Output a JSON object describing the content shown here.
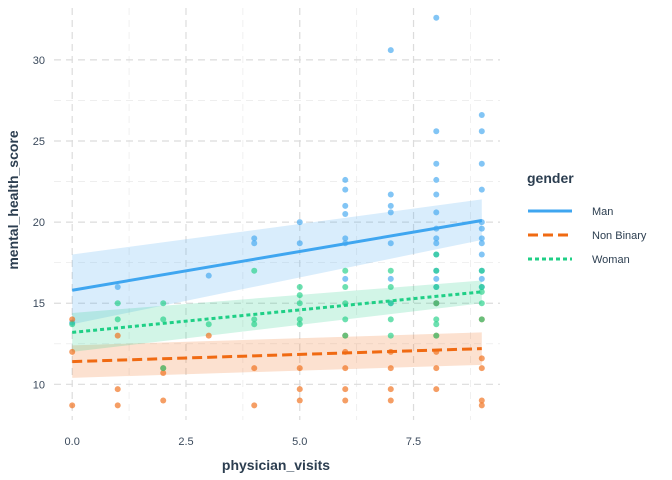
{
  "chart_data": {
    "type": "scatter",
    "xlabel": "physician_visits",
    "ylabel": "mental_health_score",
    "xlim": [
      -0.4,
      9.4
    ],
    "ylim": [
      7.8,
      33.2
    ],
    "x_ticks": [
      0,
      2.5,
      5,
      7.5
    ],
    "x_tick_labels": [
      "0.0",
      "2.5",
      "5.0",
      "7.5"
    ],
    "y_ticks": [
      10,
      15,
      20,
      25,
      30
    ],
    "y_tick_labels": [
      "10",
      "15",
      "20",
      "25",
      "30"
    ],
    "grid": true,
    "legend": {
      "title": "gender",
      "position": "right"
    },
    "series": [
      {
        "name": "Man",
        "color": "#3fa6f0",
        "line_style": "solid",
        "trend": {
          "x": [
            0,
            9
          ],
          "y": [
            15.8,
            20.1
          ]
        },
        "band": {
          "x": [
            0,
            9
          ],
          "lower": [
            13.7,
            18.9
          ],
          "upper": [
            18.0,
            21.4
          ]
        },
        "points": [
          [
            0,
            13.8
          ],
          [
            1,
            16.0
          ],
          [
            3,
            16.7
          ],
          [
            4,
            18.7
          ],
          [
            4,
            19.0
          ],
          [
            5,
            18.7
          ],
          [
            5,
            20.0
          ],
          [
            6,
            22.6
          ],
          [
            6,
            22.0
          ],
          [
            6,
            21.0
          ],
          [
            6,
            20.5
          ],
          [
            6,
            19.0
          ],
          [
            6,
            18.7
          ],
          [
            6,
            16.5
          ],
          [
            7,
            30.6
          ],
          [
            7,
            21.7
          ],
          [
            7,
            21.0
          ],
          [
            7,
            20.6
          ],
          [
            7,
            18.7
          ],
          [
            7,
            16.5
          ],
          [
            7,
            15.0
          ],
          [
            8,
            32.6
          ],
          [
            8,
            25.6
          ],
          [
            8,
            23.6
          ],
          [
            8,
            22.6
          ],
          [
            8,
            21.7
          ],
          [
            8,
            20.6
          ],
          [
            8,
            19.6
          ],
          [
            8,
            19.0
          ],
          [
            8,
            18.7
          ],
          [
            8,
            18.0
          ],
          [
            8,
            17.0
          ],
          [
            8,
            16.5
          ],
          [
            8,
            16.0
          ],
          [
            8,
            15.0
          ],
          [
            9,
            26.6
          ],
          [
            9,
            25.6
          ],
          [
            9,
            23.6
          ],
          [
            9,
            22.0
          ],
          [
            9,
            20.0
          ],
          [
            9,
            19.6
          ],
          [
            9,
            19.0
          ],
          [
            9,
            18.7
          ],
          [
            9,
            18.0
          ],
          [
            9,
            17.0
          ],
          [
            9,
            16.5
          ],
          [
            9,
            16.0
          ]
        ]
      },
      {
        "name": "Non Binary",
        "color": "#f06a12",
        "line_style": "dashed",
        "trend": {
          "x": [
            0,
            9
          ],
          "y": [
            11.4,
            12.2
          ]
        },
        "band": {
          "x": [
            0,
            9
          ],
          "lower": [
            10.4,
            11.2
          ],
          "upper": [
            12.4,
            13.2
          ]
        },
        "points": [
          [
            0,
            14.0
          ],
          [
            0,
            12.0
          ],
          [
            0,
            8.7
          ],
          [
            1,
            13.0
          ],
          [
            1,
            9.7
          ],
          [
            1,
            8.7
          ],
          [
            2,
            11.0
          ],
          [
            2,
            10.7
          ],
          [
            2,
            9.0
          ],
          [
            3,
            13.0
          ],
          [
            4,
            11.0
          ],
          [
            4,
            8.7
          ],
          [
            5,
            11.0
          ],
          [
            5,
            9.7
          ],
          [
            5,
            9.0
          ],
          [
            6,
            13.0
          ],
          [
            6,
            12.0
          ],
          [
            6,
            11.0
          ],
          [
            6,
            9.7
          ],
          [
            6,
            9.0
          ],
          [
            7,
            12.0
          ],
          [
            7,
            11.0
          ],
          [
            7,
            9.7
          ],
          [
            7,
            9.0
          ],
          [
            8,
            15.0
          ],
          [
            8,
            13.0
          ],
          [
            8,
            12.0
          ],
          [
            8,
            11.0
          ],
          [
            8,
            9.7
          ],
          [
            9,
            14.0
          ],
          [
            9,
            11.6
          ],
          [
            9,
            11.0
          ],
          [
            9,
            9.0
          ],
          [
            9,
            8.7
          ]
        ]
      },
      {
        "name": "Woman",
        "color": "#1fcf86",
        "line_style": "dotted",
        "trend": {
          "x": [
            0,
            9
          ],
          "y": [
            13.2,
            15.7
          ]
        },
        "band": {
          "x": [
            0,
            9
          ],
          "lower": [
            12.0,
            15.0
          ],
          "upper": [
            14.4,
            16.4
          ]
        },
        "points": [
          [
            0,
            13.7
          ],
          [
            1,
            15.0
          ],
          [
            1,
            14.0
          ],
          [
            2,
            15.0
          ],
          [
            2,
            14.0
          ],
          [
            2,
            11.0
          ],
          [
            3,
            13.7
          ],
          [
            4,
            17.0
          ],
          [
            4,
            14.0
          ],
          [
            4,
            13.7
          ],
          [
            5,
            16.0
          ],
          [
            5,
            15.5
          ],
          [
            5,
            15.0
          ],
          [
            5,
            14.0
          ],
          [
            5,
            13.7
          ],
          [
            6,
            17.0
          ],
          [
            6,
            16.0
          ],
          [
            6,
            15.0
          ],
          [
            6,
            14.0
          ],
          [
            6,
            13.0
          ],
          [
            7,
            17.0
          ],
          [
            7,
            16.0
          ],
          [
            7,
            15.0
          ],
          [
            7,
            14.0
          ],
          [
            7,
            13.0
          ],
          [
            8,
            18.0
          ],
          [
            8,
            17.0
          ],
          [
            8,
            16.0
          ],
          [
            8,
            15.0
          ],
          [
            8,
            14.0
          ],
          [
            8,
            13.7
          ],
          [
            8,
            13.0
          ],
          [
            9,
            17.0
          ],
          [
            9,
            16.0
          ],
          [
            9,
            15.7
          ],
          [
            9,
            15.0
          ],
          [
            9,
            14.0
          ]
        ]
      }
    ]
  }
}
